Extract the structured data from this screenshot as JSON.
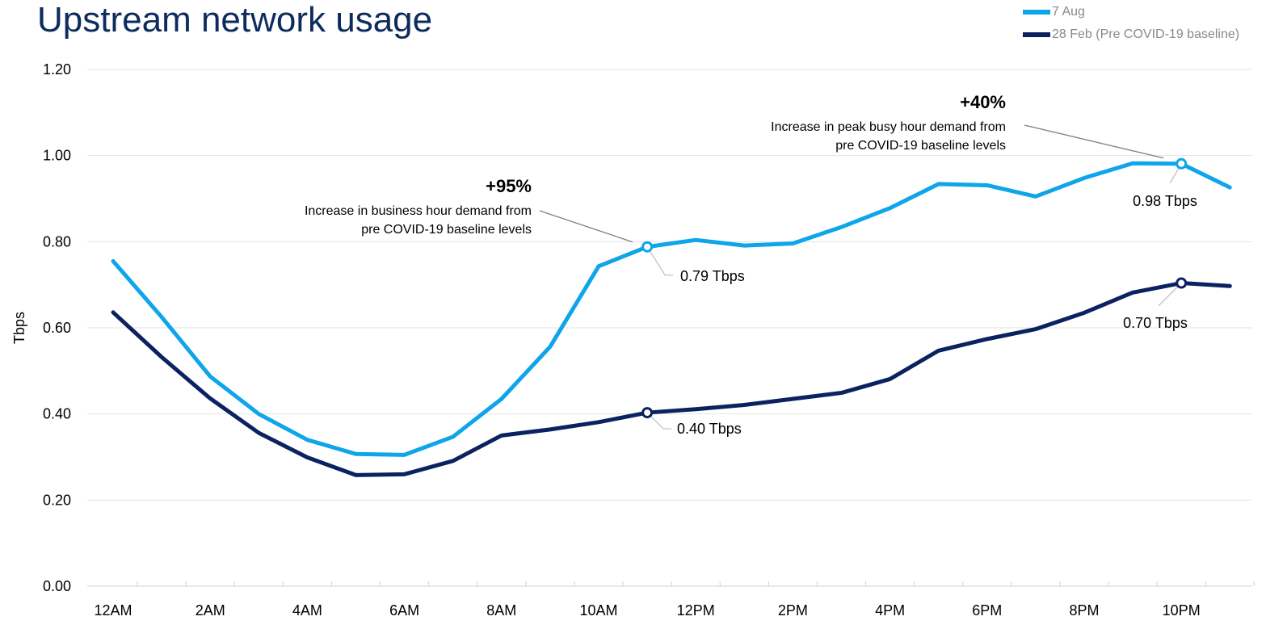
{
  "chart_data": {
    "type": "line",
    "title": "Upstream network usage",
    "ylabel": "Tbps",
    "xlabel": "",
    "ylim": [
      0,
      1.2
    ],
    "yticks": [
      "0.00",
      "0.20",
      "0.40",
      "0.60",
      "0.80",
      "1.00",
      "1.20"
    ],
    "x": [
      "12AM",
      "1AM",
      "2AM",
      "3AM",
      "4AM",
      "5AM",
      "6AM",
      "7AM",
      "8AM",
      "9AM",
      "10AM",
      "11AM",
      "12PM",
      "1PM",
      "2PM",
      "3PM",
      "4PM",
      "5PM",
      "6PM",
      "7PM",
      "8PM",
      "9PM",
      "10PM",
      "11PM"
    ],
    "xtick_labels": [
      "12AM",
      "2AM",
      "4AM",
      "6AM",
      "8AM",
      "10AM",
      "12PM",
      "2PM",
      "4PM",
      "6PM",
      "8PM",
      "10PM"
    ],
    "grid": true,
    "legend_position": "top-right",
    "series": [
      {
        "name": "7 Aug",
        "color": "#0ea5e9",
        "values": [
          0.755,
          0.625,
          0.487,
          0.4,
          0.34,
          0.307,
          0.305,
          0.347,
          0.435,
          0.556,
          0.743,
          0.788,
          0.804,
          0.791,
          0.796,
          0.834,
          0.878,
          0.934,
          0.931,
          0.905,
          0.948,
          0.982,
          0.981,
          0.926
        ]
      },
      {
        "name": "28 Feb (Pre COVID-19 baseline)",
        "color": "#0b2260",
        "values": [
          0.636,
          0.532,
          0.436,
          0.356,
          0.299,
          0.258,
          0.26,
          0.291,
          0.35,
          0.364,
          0.381,
          0.403,
          0.411,
          0.421,
          0.435,
          0.449,
          0.481,
          0.547,
          0.574,
          0.597,
          0.635,
          0.682,
          0.704,
          0.697
        ]
      }
    ],
    "annotations": [
      {
        "big": "+95%",
        "line1": "Increase in business hour demand from",
        "line2": "pre COVID-19 baseline levels",
        "x_index": 11,
        "series": 0
      },
      {
        "big": "+40%",
        "line1": "Increase in peak busy hour demand from",
        "line2": "pre COVID-19 baseline levels",
        "x_index": 22,
        "series": 0
      }
    ],
    "point_labels": [
      {
        "text": "0.79 Tbps",
        "x_index": 11,
        "series": 0
      },
      {
        "text": "0.40 Tbps",
        "x_index": 11,
        "series": 1
      },
      {
        "text": "0.98 Tbps",
        "x_index": 22,
        "series": 0
      },
      {
        "text": "0.70 Tbps",
        "x_index": 22,
        "series": 1
      }
    ]
  }
}
